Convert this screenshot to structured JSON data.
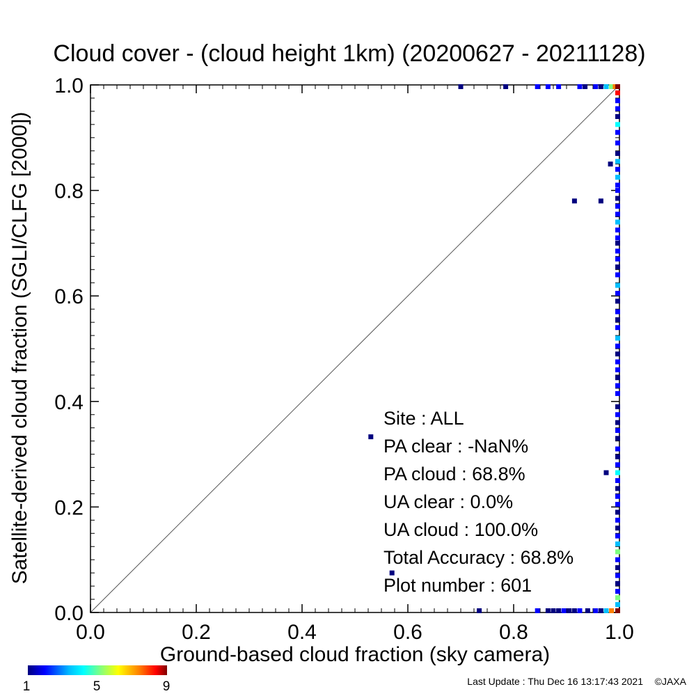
{
  "chart_data": {
    "type": "scatter",
    "title": "Cloud cover - (cloud height 1km)  (20200627 - 20211128)",
    "xlabel": "Ground-based cloud fraction (sky camera)",
    "ylabel": "Satellite-derived cloud fraction (SGLI/CLFG [2000])",
    "xlim": [
      0.0,
      1.0
    ],
    "ylim": [
      0.0,
      1.0
    ],
    "xticks": [
      "0.0",
      "0.2",
      "0.4",
      "0.6",
      "0.8",
      "1.0"
    ],
    "yticks": [
      "0.0",
      "0.2",
      "0.4",
      "0.6",
      "0.8",
      "1.0"
    ],
    "grid": false,
    "reference_line": "1:1 diagonal",
    "colorbar": {
      "min": 1,
      "max": 9,
      "ticks": [
        "1",
        "5",
        "9"
      ],
      "colormap": [
        "#00007f",
        "#0000ff",
        "#00bfff",
        "#00ffff",
        "#80ff80",
        "#ffff00",
        "#ff8000",
        "#ff0000",
        "#7f0000"
      ]
    },
    "stats": [
      {
        "label": "Site : ALL",
        "value": ""
      },
      {
        "label": "PA clear :",
        "value": "-NaN%"
      },
      {
        "label": "PA cloud :",
        "value": "68.8%"
      },
      {
        "label": "UA clear :",
        "value": "0.0%"
      },
      {
        "label": "UA cloud :",
        "value": "100.0%"
      },
      {
        "label": "Total Accuracy :",
        "value": "68.8%"
      },
      {
        "label": "Plot number :",
        "value": "601"
      }
    ],
    "points": [
      {
        "x": 0.7,
        "y": 1.0,
        "c": 1
      },
      {
        "x": 0.785,
        "y": 1.0,
        "c": 1
      },
      {
        "x": 0.845,
        "y": 1.0,
        "c": 2
      },
      {
        "x": 0.865,
        "y": 1.0,
        "c": 2
      },
      {
        "x": 0.885,
        "y": 1.0,
        "c": 2
      },
      {
        "x": 0.925,
        "y": 1.0,
        "c": 2
      },
      {
        "x": 0.935,
        "y": 1.0,
        "c": 1
      },
      {
        "x": 0.955,
        "y": 1.0,
        "c": 2
      },
      {
        "x": 0.965,
        "y": 1.0,
        "c": 1
      },
      {
        "x": 0.975,
        "y": 1.0,
        "c": 3
      },
      {
        "x": 0.985,
        "y": 1.0,
        "c": 5
      },
      {
        "x": 0.992,
        "y": 1.0,
        "c": 7
      },
      {
        "x": 0.998,
        "y": 1.0,
        "c": 9
      },
      {
        "x": 0.983,
        "y": 0.85,
        "c": 1
      },
      {
        "x": 0.915,
        "y": 0.78,
        "c": 1
      },
      {
        "x": 0.965,
        "y": 0.78,
        "c": 1
      },
      {
        "x": 0.53,
        "y": 0.333,
        "c": 1
      },
      {
        "x": 0.975,
        "y": 0.265,
        "c": 1
      },
      {
        "x": 0.57,
        "y": 0.075,
        "c": 1
      },
      {
        "x": 0.735,
        "y": 0.0,
        "c": 1
      },
      {
        "x": 0.845,
        "y": 0.0,
        "c": 2
      },
      {
        "x": 0.865,
        "y": 0.0,
        "c": 1
      },
      {
        "x": 0.875,
        "y": 0.0,
        "c": 1
      },
      {
        "x": 0.885,
        "y": 0.0,
        "c": 1
      },
      {
        "x": 0.895,
        "y": 0.0,
        "c": 2
      },
      {
        "x": 0.905,
        "y": 0.0,
        "c": 1
      },
      {
        "x": 0.915,
        "y": 0.0,
        "c": 1
      },
      {
        "x": 0.925,
        "y": 0.0,
        "c": 2
      },
      {
        "x": 0.94,
        "y": 0.0,
        "c": 1
      },
      {
        "x": 0.955,
        "y": 0.0,
        "c": 2
      },
      {
        "x": 0.965,
        "y": 0.0,
        "c": 1
      },
      {
        "x": 0.975,
        "y": 0.0,
        "c": 3
      },
      {
        "x": 0.985,
        "y": 0.0,
        "c": 7
      },
      {
        "x": 0.998,
        "y": 0.0,
        "c": 9
      },
      {
        "x": 1.0,
        "y": 0.985,
        "c": 8
      },
      {
        "x": 1.0,
        "y": 0.97,
        "c": 2
      },
      {
        "x": 1.0,
        "y": 0.955,
        "c": 2
      },
      {
        "x": 1.0,
        "y": 0.94,
        "c": 1
      },
      {
        "x": 1.0,
        "y": 0.925,
        "c": 4
      },
      {
        "x": 1.0,
        "y": 0.91,
        "c": 2
      },
      {
        "x": 1.0,
        "y": 0.89,
        "c": 2
      },
      {
        "x": 1.0,
        "y": 0.87,
        "c": 1
      },
      {
        "x": 1.0,
        "y": 0.855,
        "c": 3
      },
      {
        "x": 1.0,
        "y": 0.84,
        "c": 2
      },
      {
        "x": 1.0,
        "y": 0.825,
        "c": 3
      },
      {
        "x": 1.0,
        "y": 0.81,
        "c": 2
      },
      {
        "x": 1.0,
        "y": 0.8,
        "c": 2
      },
      {
        "x": 1.0,
        "y": 0.785,
        "c": 1
      },
      {
        "x": 1.0,
        "y": 0.77,
        "c": 2
      },
      {
        "x": 1.0,
        "y": 0.755,
        "c": 2
      },
      {
        "x": 1.0,
        "y": 0.74,
        "c": 3
      },
      {
        "x": 1.0,
        "y": 0.725,
        "c": 2
      },
      {
        "x": 1.0,
        "y": 0.71,
        "c": 2
      },
      {
        "x": 1.0,
        "y": 0.7,
        "c": 1
      },
      {
        "x": 1.0,
        "y": 0.685,
        "c": 2
      },
      {
        "x": 1.0,
        "y": 0.67,
        "c": 2
      },
      {
        "x": 1.0,
        "y": 0.655,
        "c": 1
      },
      {
        "x": 1.0,
        "y": 0.64,
        "c": 2
      },
      {
        "x": 1.0,
        "y": 0.62,
        "c": 3
      },
      {
        "x": 1.0,
        "y": 0.605,
        "c": 2
      },
      {
        "x": 1.0,
        "y": 0.59,
        "c": 1
      },
      {
        "x": 1.0,
        "y": 0.57,
        "c": 2
      },
      {
        "x": 1.0,
        "y": 0.555,
        "c": 1
      },
      {
        "x": 1.0,
        "y": 0.54,
        "c": 2
      },
      {
        "x": 1.0,
        "y": 0.52,
        "c": 3
      },
      {
        "x": 1.0,
        "y": 0.505,
        "c": 2
      },
      {
        "x": 1.0,
        "y": 0.49,
        "c": 1
      },
      {
        "x": 1.0,
        "y": 0.475,
        "c": 2
      },
      {
        "x": 1.0,
        "y": 0.46,
        "c": 2
      },
      {
        "x": 1.0,
        "y": 0.445,
        "c": 1
      },
      {
        "x": 1.0,
        "y": 0.43,
        "c": 2
      },
      {
        "x": 1.0,
        "y": 0.415,
        "c": 2
      },
      {
        "x": 1.0,
        "y": 0.39,
        "c": 1
      },
      {
        "x": 1.0,
        "y": 0.375,
        "c": 2
      },
      {
        "x": 1.0,
        "y": 0.36,
        "c": 1
      },
      {
        "x": 1.0,
        "y": 0.345,
        "c": 2
      },
      {
        "x": 1.0,
        "y": 0.33,
        "c": 1
      },
      {
        "x": 1.0,
        "y": 0.31,
        "c": 2
      },
      {
        "x": 1.0,
        "y": 0.295,
        "c": 1
      },
      {
        "x": 1.0,
        "y": 0.28,
        "c": 2
      },
      {
        "x": 1.0,
        "y": 0.265,
        "c": 4
      },
      {
        "x": 1.0,
        "y": 0.25,
        "c": 2
      },
      {
        "x": 1.0,
        "y": 0.235,
        "c": 1
      },
      {
        "x": 1.0,
        "y": 0.22,
        "c": 2
      },
      {
        "x": 1.0,
        "y": 0.205,
        "c": 2
      },
      {
        "x": 1.0,
        "y": 0.19,
        "c": 1
      },
      {
        "x": 1.0,
        "y": 0.175,
        "c": 2
      },
      {
        "x": 1.0,
        "y": 0.16,
        "c": 1
      },
      {
        "x": 1.0,
        "y": 0.145,
        "c": 2
      },
      {
        "x": 1.0,
        "y": 0.13,
        "c": 3
      },
      {
        "x": 1.0,
        "y": 0.115,
        "c": 5
      },
      {
        "x": 1.0,
        "y": 0.1,
        "c": 2
      },
      {
        "x": 1.0,
        "y": 0.085,
        "c": 1
      },
      {
        "x": 1.0,
        "y": 0.07,
        "c": 2
      },
      {
        "x": 1.0,
        "y": 0.055,
        "c": 1
      },
      {
        "x": 1.0,
        "y": 0.04,
        "c": 2
      },
      {
        "x": 1.0,
        "y": 0.028,
        "c": 5
      },
      {
        "x": 1.0,
        "y": 0.015,
        "c": 3
      }
    ]
  },
  "footer": {
    "last_update": "Last Update : Thu Dec 16 13:17:43 2021",
    "copyright": "©JAXA"
  }
}
